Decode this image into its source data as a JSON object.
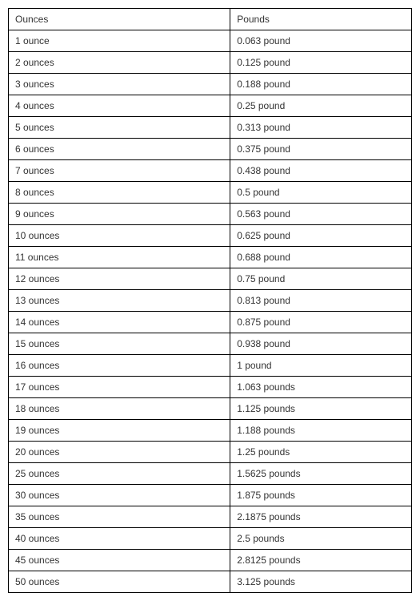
{
  "conversion_table": {
    "type": "table",
    "columns": [
      "Ounces",
      "Pounds"
    ],
    "column_widths": [
      "55%",
      "45%"
    ],
    "rows": [
      [
        "1 ounce",
        "0.063 pound"
      ],
      [
        "2 ounces",
        "0.125 pound"
      ],
      [
        "3 ounces",
        "0.188 pound"
      ],
      [
        "4 ounces",
        "0.25 pound"
      ],
      [
        "5 ounces",
        "0.313 pound"
      ],
      [
        "6 ounces",
        "0.375 pound"
      ],
      [
        "7 ounces",
        "0.438 pound"
      ],
      [
        "8 ounces",
        "0.5 pound"
      ],
      [
        "9 ounces",
        "0.563 pound"
      ],
      [
        "10 ounces",
        "0.625 pound"
      ],
      [
        "11 ounces",
        "0.688 pound"
      ],
      [
        "12 ounces",
        "0.75 pound"
      ],
      [
        "13 ounces",
        "0.813 pound"
      ],
      [
        "14 ounces",
        "0.875 pound"
      ],
      [
        "15 ounces",
        "0.938 pound"
      ],
      [
        "16 ounces",
        "1 pound"
      ],
      [
        "17 ounces",
        "1.063 pounds"
      ],
      [
        "18 ounces",
        "1.125 pounds"
      ],
      [
        "19 ounces",
        "1.188 pounds"
      ],
      [
        "20 ounces",
        "1.25 pounds"
      ],
      [
        "25 ounces",
        "1.5625 pounds"
      ],
      [
        "30 ounces",
        "1.875 pounds"
      ],
      [
        "35 ounces",
        "2.1875 pounds"
      ],
      [
        "40 ounces",
        "2.5 pounds"
      ],
      [
        "45 ounces",
        "2.8125 pounds"
      ],
      [
        "50 ounces",
        "3.125 pounds"
      ]
    ],
    "border_color": "#000000",
    "background_color": "#ffffff",
    "text_color": "#333333",
    "font_size": 12,
    "cell_padding": "6px 8px"
  }
}
